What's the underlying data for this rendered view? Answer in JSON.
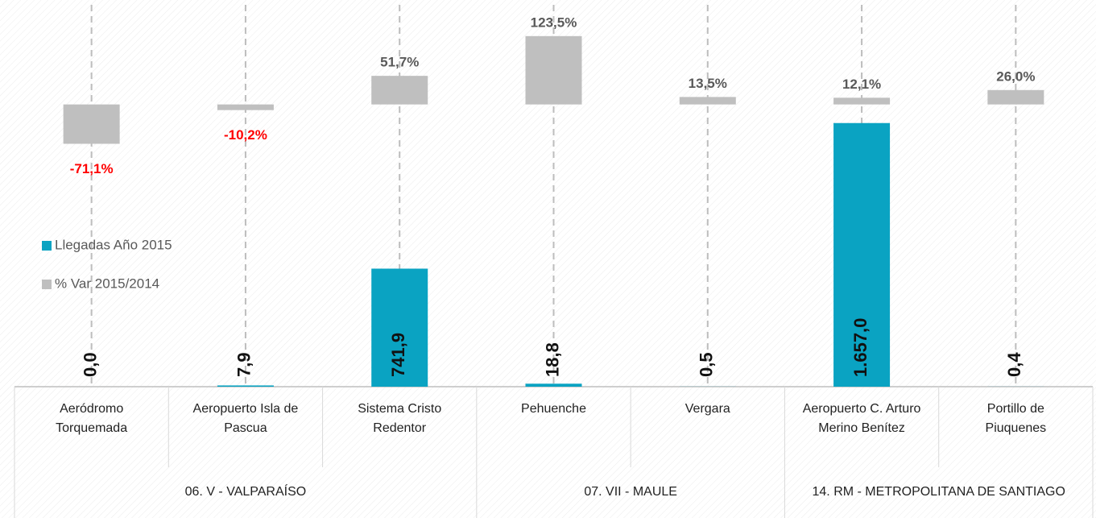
{
  "chart_data": {
    "type": "bar",
    "categories": [
      "Aeródromo Torquemada",
      "Aeropuerto Isla de Pascua",
      "Sistema Cristo Redentor",
      "Pehuenche",
      "Vergara",
      "Aeropuerto C. Arturo Merino Benítez",
      "Portillo de Piuquenes"
    ],
    "category_groups": [
      "06. V - VALPARAÍSO",
      "06. V - VALPARAÍSO",
      "06. V - VALPARAÍSO",
      "07. VII - MAULE",
      "07. VII - MAULE",
      "14. RM - METROPOLITANA DE SANTIAGO",
      "14. RM - METROPOLITANA DE SANTIAGO"
    ],
    "series": [
      {
        "name": "Llegadas Año 2015",
        "color": "#0aa3c2",
        "values": [
          0.0,
          7.9,
          741.9,
          18.8,
          0.5,
          1657.0,
          0.4
        ],
        "value_labels": [
          "0,0",
          "7,9",
          "741,9",
          "18,8",
          "0,5",
          "1.657,0",
          "0,4"
        ]
      },
      {
        "name": "% Var 2015/2014",
        "color": "#bfbfbf",
        "axis": "y2",
        "values": [
          -71.1,
          -10.2,
          51.7,
          123.5,
          13.5,
          12.1,
          26.0
        ],
        "value_labels": [
          "-71,1%",
          "-10,2%",
          "51,7%",
          "123,5%",
          "13,5%",
          "12,1%",
          "26,0%"
        ]
      }
    ],
    "ylim": [
      0,
      2400
    ],
    "y2lim": [
      -510,
      180
    ],
    "legend": "left",
    "negative_label_color": "#ff0000"
  }
}
